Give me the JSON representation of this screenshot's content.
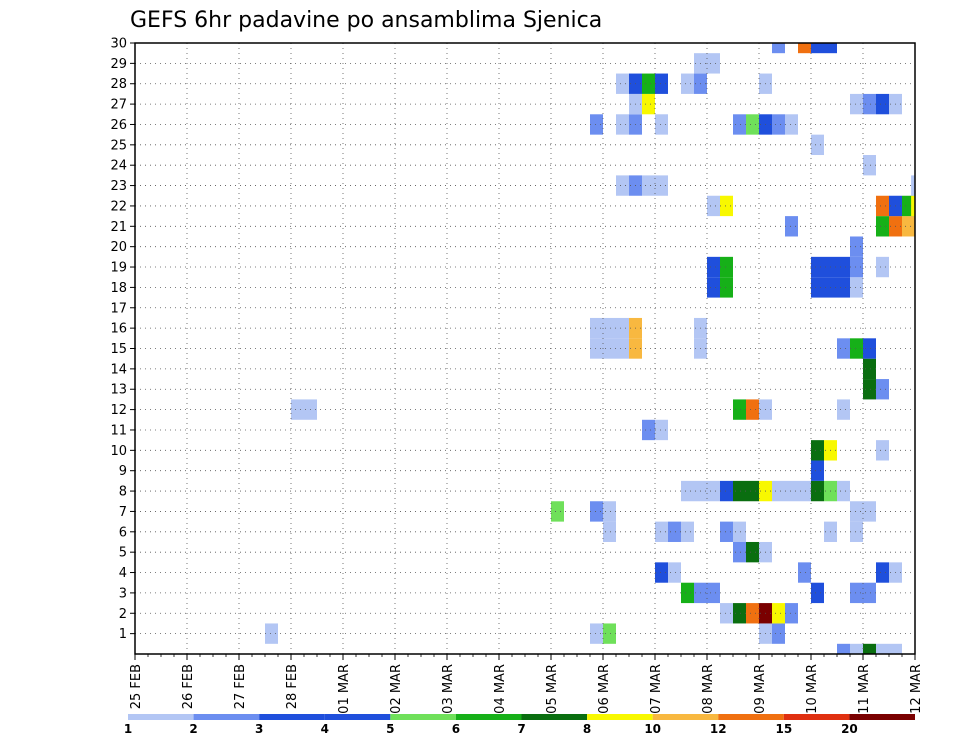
{
  "chart_data": {
    "type": "heatmap",
    "title": "GEFS 6hr padavine po ansamblima Sjenica",
    "xlabel": "",
    "ylabel": "",
    "x_ticks": [
      "25 FEB",
      "26 FEB",
      "27 FEB",
      "28 FEB",
      "01 MAR",
      "02 MAR",
      "03 MAR",
      "04 MAR",
      "05 MAR",
      "06 MAR",
      "07 MAR",
      "08 MAR",
      "09 MAR",
      "10 MAR",
      "11 MAR",
      "12 MAR"
    ],
    "y_ticks": [
      1,
      2,
      3,
      4,
      5,
      6,
      7,
      8,
      9,
      10,
      11,
      12,
      13,
      14,
      15,
      16,
      17,
      18,
      19,
      20,
      21,
      22,
      23,
      24,
      25,
      26,
      27,
      28,
      29,
      30
    ],
    "x_range": [
      0,
      60
    ],
    "y_range": [
      0,
      30
    ],
    "steps_per_day": 4,
    "grid": true,
    "legend_position": "bottom",
    "legend": {
      "labels": [
        "1",
        "2",
        "3",
        "4",
        "5",
        "6",
        "7",
        "8",
        "10",
        "12",
        "15",
        "20"
      ],
      "colors": [
        "#b3c6f4",
        "#6c8ef0",
        "#1f4fdc",
        "#1f4fdc",
        "#6fe05a",
        "#16b018",
        "#0a6e10",
        "#f8f800",
        "#f8b840",
        "#f07010",
        "#e03010",
        "#7a0000"
      ]
    },
    "levels": [
      {
        "min": 1,
        "max": 2,
        "color": "#b3c6f4"
      },
      {
        "min": 2,
        "max": 3,
        "color": "#6c8ef0"
      },
      {
        "min": 3,
        "max": 4,
        "color": "#1f4fdc"
      },
      {
        "min": 4,
        "max": 5,
        "color": "#6fe05a"
      },
      {
        "min": 5,
        "max": 6,
        "color": "#16b018"
      },
      {
        "min": 6,
        "max": 7,
        "color": "#0a6e10"
      },
      {
        "min": 7,
        "max": 8,
        "color": "#f8f800"
      },
      {
        "min": 8,
        "max": 10,
        "color": "#f8b840"
      },
      {
        "min": 10,
        "max": 12,
        "color": "#f07010"
      },
      {
        "min": 12,
        "max": 15,
        "color": "#e03010"
      },
      {
        "min": 15,
        "max": 20,
        "color": "#c01010"
      },
      {
        "min": 20,
        "max": 25,
        "color": "#7a0000"
      }
    ],
    "cells": [
      {
        "member": 1,
        "step": 10.5,
        "value": 1
      },
      {
        "member": 1,
        "step": 35.5,
        "value": 1
      },
      {
        "member": 1,
        "step": 36.5,
        "value": 4
      },
      {
        "member": 1,
        "step": 48.5,
        "value": 1
      },
      {
        "member": 1,
        "step": 49.5,
        "value": 2
      },
      {
        "member": 2,
        "step": 45.5,
        "value": 1
      },
      {
        "member": 2,
        "step": 46.5,
        "value": 6
      },
      {
        "member": 2,
        "step": 47.5,
        "value": 10
      },
      {
        "member": 2,
        "step": 48.5,
        "value": 20
      },
      {
        "member": 2,
        "step": 49.5,
        "value": 7
      },
      {
        "member": 2,
        "step": 50.5,
        "value": 2
      },
      {
        "member": 3,
        "step": 42.5,
        "value": 5
      },
      {
        "member": 3,
        "step": 43.5,
        "value": 2
      },
      {
        "member": 3,
        "step": 44.5,
        "value": 2
      },
      {
        "member": 3,
        "step": 52.5,
        "value": 3
      },
      {
        "member": 3,
        "step": 55.5,
        "value": 2
      },
      {
        "member": 3,
        "step": 56.5,
        "value": 2
      },
      {
        "member": 4,
        "step": 40.5,
        "value": 3
      },
      {
        "member": 4,
        "step": 41.5,
        "value": 1
      },
      {
        "member": 4,
        "step": 51.5,
        "value": 2
      },
      {
        "member": 4,
        "step": 57.5,
        "value": 3
      },
      {
        "member": 4,
        "step": 58.5,
        "value": 1
      },
      {
        "member": 5,
        "step": 46.5,
        "value": 2
      },
      {
        "member": 5,
        "step": 47.5,
        "value": 6
      },
      {
        "member": 5,
        "step": 48.5,
        "value": 1
      },
      {
        "member": 6,
        "step": 36.5,
        "value": 1
      },
      {
        "member": 6,
        "step": 40.5,
        "value": 1
      },
      {
        "member": 6,
        "step": 41.5,
        "value": 2
      },
      {
        "member": 6,
        "step": 42.5,
        "value": 1
      },
      {
        "member": 6,
        "step": 45.5,
        "value": 2
      },
      {
        "member": 6,
        "step": 46.5,
        "value": 1
      },
      {
        "member": 6,
        "step": 53.5,
        "value": 1
      },
      {
        "member": 6,
        "step": 55.5,
        "value": 1
      },
      {
        "member": 7,
        "step": 32.5,
        "value": 4
      },
      {
        "member": 7,
        "step": 35.5,
        "value": 2
      },
      {
        "member": 7,
        "step": 36.5,
        "value": 1
      },
      {
        "member": 7,
        "step": 55.5,
        "value": 1
      },
      {
        "member": 7,
        "step": 56.5,
        "value": 1
      },
      {
        "member": 8,
        "step": 42.5,
        "value": 1
      },
      {
        "member": 8,
        "step": 43.5,
        "value": 1
      },
      {
        "member": 8,
        "step": 44.5,
        "value": 1
      },
      {
        "member": 8,
        "step": 45.5,
        "value": 3
      },
      {
        "member": 8,
        "step": 46.5,
        "value": 6
      },
      {
        "member": 8,
        "step": 47.5,
        "value": 6
      },
      {
        "member": 8,
        "step": 48.5,
        "value": 7
      },
      {
        "member": 8,
        "step": 49.5,
        "value": 1
      },
      {
        "member": 8,
        "step": 50.5,
        "value": 1
      },
      {
        "member": 8,
        "step": 51.5,
        "value": 1
      },
      {
        "member": 8,
        "step": 52.5,
        "value": 6
      },
      {
        "member": 8,
        "step": 53.5,
        "value": 4
      },
      {
        "member": 8,
        "step": 54.5,
        "value": 1
      },
      {
        "member": 9,
        "step": 52.5,
        "value": 3
      },
      {
        "member": 10,
        "step": 52.5,
        "value": 6
      },
      {
        "member": 10,
        "step": 53.5,
        "value": 7
      },
      {
        "member": 10,
        "step": 57.5,
        "value": 1
      },
      {
        "member": 11,
        "step": 39.5,
        "value": 2
      },
      {
        "member": 11,
        "step": 40.5,
        "value": 1
      },
      {
        "member": 12,
        "step": 12.5,
        "value": 1
      },
      {
        "member": 12,
        "step": 13.5,
        "value": 1
      },
      {
        "member": 12,
        "step": 46.5,
        "value": 5
      },
      {
        "member": 12,
        "step": 47.5,
        "value": 10
      },
      {
        "member": 12,
        "step": 48.5,
        "value": 1
      },
      {
        "member": 12,
        "step": 54.5,
        "value": 1
      },
      {
        "member": 13,
        "step": 56.5,
        "value": 6
      },
      {
        "member": 13,
        "step": 57.5,
        "value": 2
      },
      {
        "member": 14,
        "step": 56.5,
        "value": 6
      },
      {
        "member": 15,
        "step": 35.5,
        "value": 1
      },
      {
        "member": 15,
        "step": 36.5,
        "value": 1
      },
      {
        "member": 15,
        "step": 37.5,
        "value": 1
      },
      {
        "member": 15,
        "step": 38.5,
        "value": 8
      },
      {
        "member": 15,
        "step": 43.5,
        "value": 1
      },
      {
        "member": 15,
        "step": 54.5,
        "value": 2
      },
      {
        "member": 15,
        "step": 55.5,
        "value": 5
      },
      {
        "member": 15,
        "step": 56.5,
        "value": 3
      },
      {
        "member": 16,
        "step": 35.5,
        "value": 1
      },
      {
        "member": 16,
        "step": 36.5,
        "value": 1
      },
      {
        "member": 16,
        "step": 37.5,
        "value": 1
      },
      {
        "member": 16,
        "step": 38.5,
        "value": 8
      },
      {
        "member": 16,
        "step": 43.5,
        "value": 1
      },
      {
        "member": 18,
        "step": 44.5,
        "value": 3
      },
      {
        "member": 18,
        "step": 45.5,
        "value": 5
      },
      {
        "member": 18,
        "step": 52.5,
        "value": 3
      },
      {
        "member": 18,
        "step": 53.5,
        "value": 3
      },
      {
        "member": 18,
        "step": 54.5,
        "value": 3
      },
      {
        "member": 18,
        "step": 55.5,
        "value": 1
      },
      {
        "member": 19,
        "step": 44.5,
        "value": 3
      },
      {
        "member": 19,
        "step": 45.5,
        "value": 5
      },
      {
        "member": 19,
        "step": 52.5,
        "value": 3
      },
      {
        "member": 19,
        "step": 53.5,
        "value": 3
      },
      {
        "member": 19,
        "step": 54.5,
        "value": 3
      },
      {
        "member": 19,
        "step": 55.5,
        "value": 2
      },
      {
        "member": 19,
        "step": 57.5,
        "value": 1
      },
      {
        "member": 20,
        "step": 55.5,
        "value": 2
      },
      {
        "member": 21,
        "step": 50.5,
        "value": 2
      },
      {
        "member": 21,
        "step": 57.5,
        "value": 5
      },
      {
        "member": 21,
        "step": 58.5,
        "value": 10
      },
      {
        "member": 21,
        "step": 59.5,
        "value": 8
      },
      {
        "member": 22,
        "step": 44.5,
        "value": 1
      },
      {
        "member": 22,
        "step": 45.5,
        "value": 7
      },
      {
        "member": 22,
        "step": 57.5,
        "value": 10
      },
      {
        "member": 22,
        "step": 58.5,
        "value": 3
      },
      {
        "member": 22,
        "step": 59.5,
        "value": 5
      },
      {
        "member": 22,
        "step": 60.2,
        "value": 7
      },
      {
        "member": 23,
        "step": 37.5,
        "value": 1
      },
      {
        "member": 23,
        "step": 38.5,
        "value": 2
      },
      {
        "member": 23,
        "step": 39.5,
        "value": 1
      },
      {
        "member": 23,
        "step": 40.5,
        "value": 1
      },
      {
        "member": 23,
        "step": 60.2,
        "value": 1
      },
      {
        "member": 24,
        "step": 56.5,
        "value": 1
      },
      {
        "member": 25,
        "step": 52.5,
        "value": 1
      },
      {
        "member": 26,
        "step": 35.5,
        "value": 2
      },
      {
        "member": 26,
        "step": 37.5,
        "value": 1
      },
      {
        "member": 26,
        "step": 38.5,
        "value": 2
      },
      {
        "member": 26,
        "step": 40.5,
        "value": 1
      },
      {
        "member": 26,
        "step": 46.5,
        "value": 2
      },
      {
        "member": 26,
        "step": 47.5,
        "value": 4
      },
      {
        "member": 26,
        "step": 48.5,
        "value": 3
      },
      {
        "member": 26,
        "step": 49.5,
        "value": 2
      },
      {
        "member": 26,
        "step": 50.5,
        "value": 1
      },
      {
        "member": 27,
        "step": 38.5,
        "value": 1
      },
      {
        "member": 27,
        "step": 39.5,
        "value": 7
      },
      {
        "member": 27,
        "step": 55.5,
        "value": 1
      },
      {
        "member": 27,
        "step": 56.5,
        "value": 2
      },
      {
        "member": 27,
        "step": 57.5,
        "value": 3
      },
      {
        "member": 27,
        "step": 58.5,
        "value": 1
      },
      {
        "member": 28,
        "step": 37.5,
        "value": 1
      },
      {
        "member": 28,
        "step": 38.5,
        "value": 3
      },
      {
        "member": 28,
        "step": 39.5,
        "value": 5
      },
      {
        "member": 28,
        "step": 40.5,
        "value": 3
      },
      {
        "member": 28,
        "step": 42.5,
        "value": 1
      },
      {
        "member": 28,
        "step": 43.5,
        "value": 2
      },
      {
        "member": 28,
        "step": 48.5,
        "value": 1
      },
      {
        "member": 29,
        "step": 43.5,
        "value": 1
      },
      {
        "member": 29,
        "step": 44.5,
        "value": 1
      },
      {
        "member": 30,
        "step": 49.5,
        "value": 2
      },
      {
        "member": 30,
        "step": 51.5,
        "value": 10
      },
      {
        "member": 30,
        "step": 52.5,
        "value": 3
      },
      {
        "member": 30,
        "step": 53.5,
        "value": 3
      },
      {
        "member": 0,
        "step": 54.5,
        "value": 2
      },
      {
        "member": 0,
        "step": 55.5,
        "value": 1
      },
      {
        "member": 0,
        "step": 56.5,
        "value": 6
      },
      {
        "member": 0,
        "step": 57.5,
        "value": 1
      },
      {
        "member": 0,
        "step": 58.5,
        "value": 1
      }
    ]
  }
}
